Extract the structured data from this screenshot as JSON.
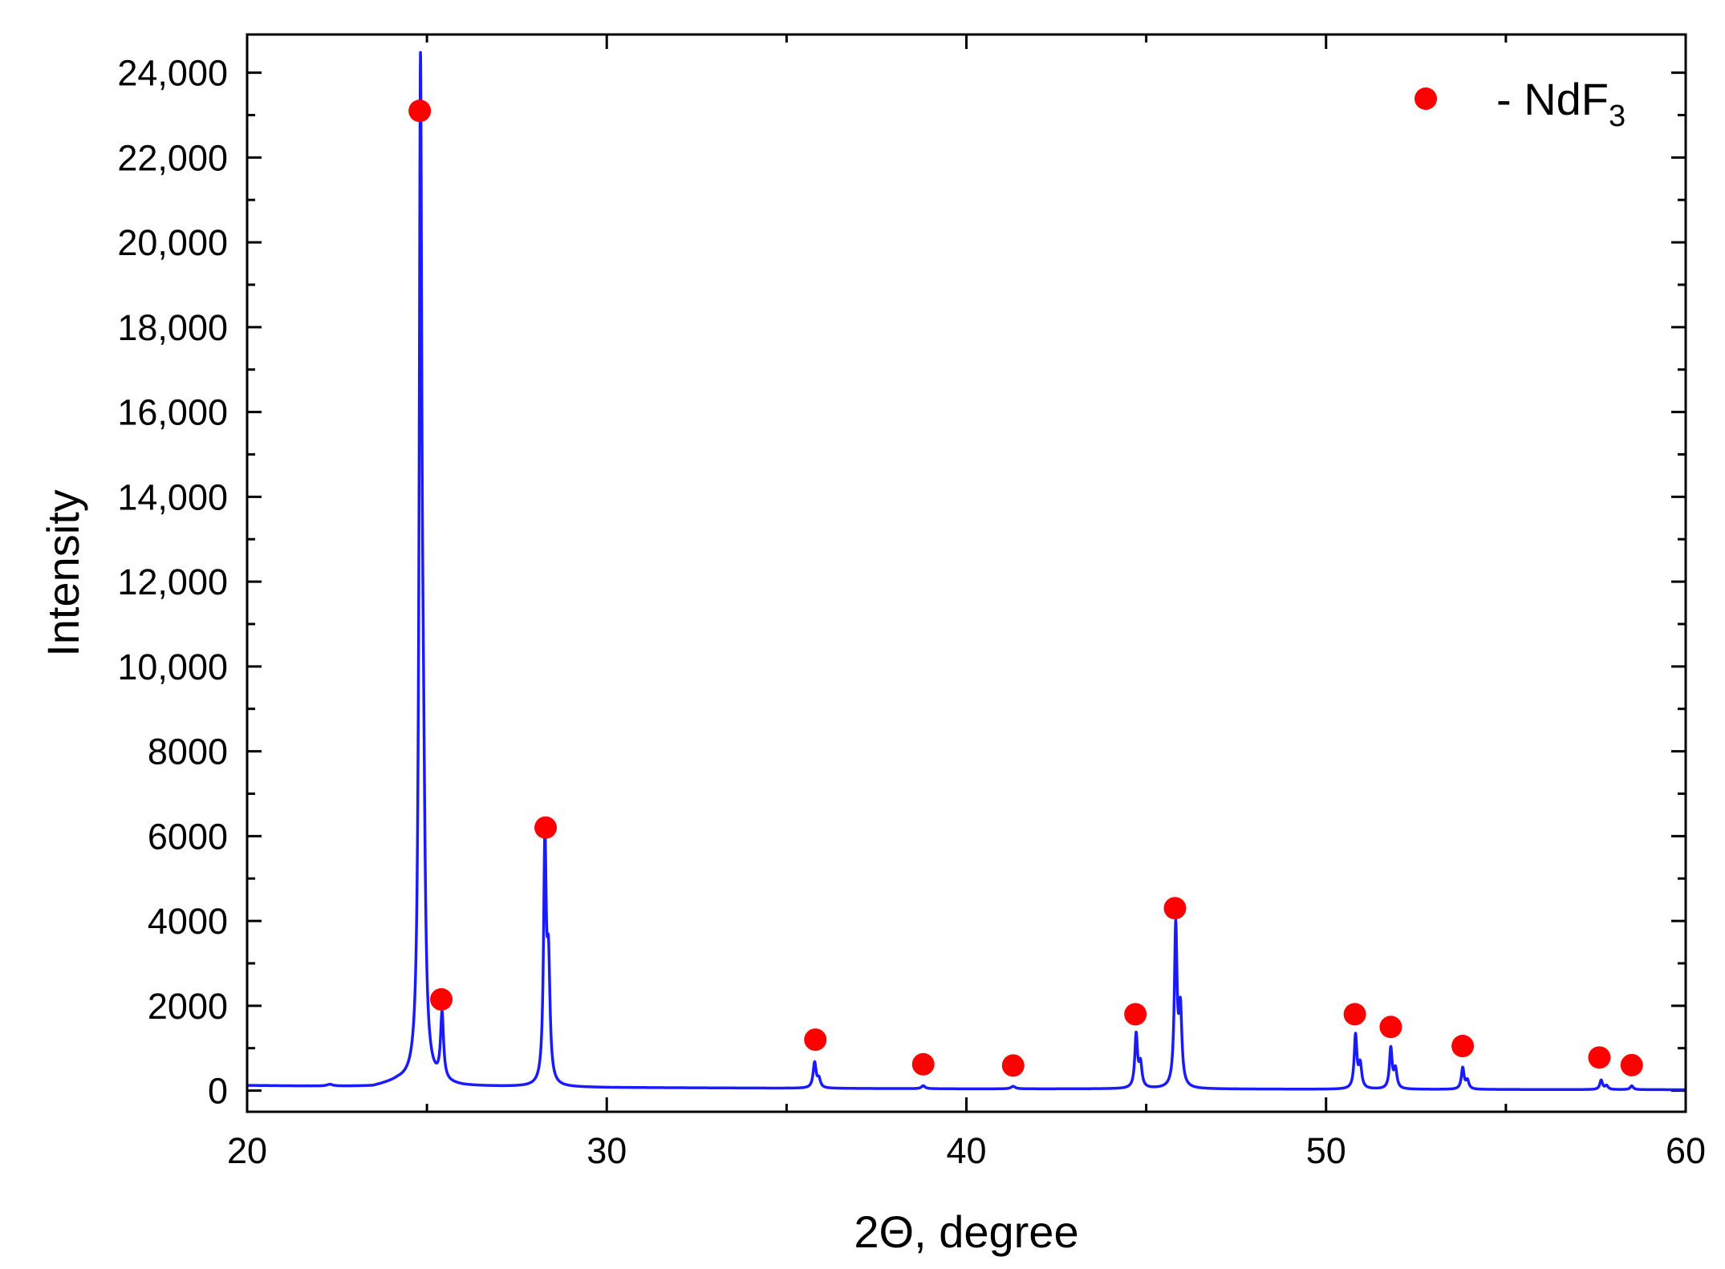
{
  "chart_data": {
    "type": "line",
    "title": "",
    "xlabel": "2Θ, degree",
    "ylabel": "Intensity",
    "xlim": [
      20,
      60
    ],
    "ylim": [
      -500,
      24900
    ],
    "x_ticks": [
      20,
      30,
      40,
      50,
      60
    ],
    "x_tick_labels": [
      "20",
      "30",
      "40",
      "50",
      "60"
    ],
    "y_ticks": [
      0,
      2000,
      4000,
      6000,
      8000,
      10000,
      12000,
      14000,
      16000,
      18000,
      20000,
      22000,
      24000
    ],
    "y_tick_labels": [
      "0",
      "2000",
      "4000",
      "6000",
      "8000",
      "10,000",
      "12,000",
      "14,000",
      "16,000",
      "18,000",
      "20,000",
      "22,000",
      "24,000"
    ],
    "grid": false,
    "legend_position": "top-right",
    "series": [
      {
        "name": "",
        "color": "#1a1aff",
        "baseline": [
          [
            20,
            120
          ],
          [
            22,
            100
          ],
          [
            23.5,
            90
          ],
          [
            24.2,
            200
          ],
          [
            26,
            100
          ],
          [
            30,
            70
          ],
          [
            35,
            55
          ],
          [
            40,
            40
          ],
          [
            45,
            40
          ],
          [
            50,
            30
          ],
          [
            55,
            25
          ],
          [
            60,
            20
          ]
        ],
        "peaks": [
          {
            "x": 22.3,
            "h": 40,
            "w": 0.1
          },
          {
            "x": 24.82,
            "h": 22500,
            "w": 0.045
          },
          {
            "x": 24.9,
            "h": 5000,
            "w": 0.06
          },
          {
            "x": 25.42,
            "h": 1550,
            "w": 0.05
          },
          {
            "x": 28.28,
            "h": 5550,
            "w": 0.045
          },
          {
            "x": 28.38,
            "h": 2600,
            "w": 0.05
          },
          {
            "x": 35.78,
            "h": 600,
            "w": 0.05
          },
          {
            "x": 35.9,
            "h": 200,
            "w": 0.05
          },
          {
            "x": 38.8,
            "h": 70,
            "w": 0.06
          },
          {
            "x": 41.3,
            "h": 60,
            "w": 0.07
          },
          {
            "x": 44.72,
            "h": 1250,
            "w": 0.045
          },
          {
            "x": 44.84,
            "h": 550,
            "w": 0.05
          },
          {
            "x": 45.82,
            "h": 3750,
            "w": 0.045
          },
          {
            "x": 45.95,
            "h": 1750,
            "w": 0.05
          },
          {
            "x": 50.82,
            "h": 1250,
            "w": 0.045
          },
          {
            "x": 50.95,
            "h": 550,
            "w": 0.05
          },
          {
            "x": 51.8,
            "h": 950,
            "w": 0.045
          },
          {
            "x": 51.93,
            "h": 450,
            "w": 0.05
          },
          {
            "x": 53.8,
            "h": 500,
            "w": 0.045
          },
          {
            "x": 53.93,
            "h": 200,
            "w": 0.05
          },
          {
            "x": 57.65,
            "h": 220,
            "w": 0.045
          },
          {
            "x": 57.8,
            "h": 90,
            "w": 0.05
          },
          {
            "x": 58.5,
            "h": 90,
            "w": 0.05
          }
        ]
      },
      {
        "name": "NdF3",
        "type": "scatter",
        "color": "#ff0000",
        "points": [
          {
            "x": 24.8,
            "y": 23100
          },
          {
            "x": 25.4,
            "y": 2150
          },
          {
            "x": 28.3,
            "y": 6200
          },
          {
            "x": 35.8,
            "y": 1200
          },
          {
            "x": 38.8,
            "y": 620
          },
          {
            "x": 41.3,
            "y": 590
          },
          {
            "x": 44.7,
            "y": 1800
          },
          {
            "x": 45.8,
            "y": 4300
          },
          {
            "x": 50.8,
            "y": 1800
          },
          {
            "x": 51.8,
            "y": 1500
          },
          {
            "x": 53.8,
            "y": 1050
          },
          {
            "x": 57.6,
            "y": 780
          },
          {
            "x": 58.5,
            "y": 600
          }
        ]
      }
    ],
    "legend": {
      "marker_color": "#ff0000",
      "prefix": "- NdF",
      "subscript": "3"
    }
  }
}
